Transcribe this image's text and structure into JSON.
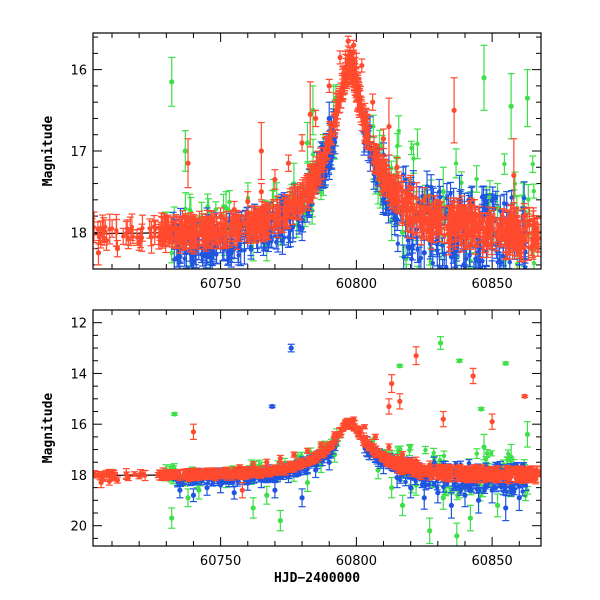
{
  "chart_data": [
    {
      "type": "scatter",
      "panel": "top",
      "title": "",
      "xlabel": "",
      "ylabel": "Magnitude",
      "xlim": [
        60703,
        60868
      ],
      "ylim": [
        18.45,
        15.55
      ],
      "y_inverted": true,
      "xticks": [
        60750,
        60800,
        60850
      ],
      "yticks": [
        16,
        17,
        18
      ],
      "xtick_labels": [
        "60750",
        "60800",
        "60850"
      ],
      "ytick_labels": [
        "16",
        "17",
        "18"
      ],
      "grid": false,
      "legend": "none",
      "model_curve": {
        "t0": 60797.5,
        "u0": 0.148,
        "tE": 22,
        "baseline": 18.02,
        "color": "#000000"
      },
      "series": [
        {
          "color": "#ff4a2e",
          "x": [
            60705,
            60708,
            60712,
            60716,
            60720,
            60726,
            60730,
            60735,
            60740,
            60745,
            60750,
            60755,
            60760,
            60765,
            60770,
            60775,
            60780,
            60785,
            60790,
            60794,
            60797,
            60799,
            60802,
            60806,
            60810,
            60815,
            60820,
            60825,
            60830,
            60835,
            60840,
            60845,
            60850,
            60855,
            60860,
            60865,
            60738,
            60765,
            60783,
            60800,
            60812,
            60836,
            60858
          ],
          "y": [
            18.25,
            18.1,
            18.2,
            18.08,
            18.12,
            17.95,
            18.0,
            17.95,
            17.88,
            17.85,
            17.8,
            17.72,
            17.62,
            17.5,
            17.35,
            17.15,
            16.9,
            16.6,
            16.2,
            15.85,
            15.65,
            15.7,
            15.95,
            16.4,
            16.85,
            17.2,
            17.45,
            17.6,
            17.75,
            17.85,
            17.92,
            17.98,
            18.0,
            18.05,
            18.05,
            18.08,
            17.15,
            17.0,
            16.55,
            16.1,
            16.7,
            16.5,
            17.3
          ],
          "err": [
            0.15,
            0.12,
            0.1,
            0.12,
            0.1,
            0.1,
            0.12,
            0.1,
            0.1,
            0.12,
            0.1,
            0.1,
            0.12,
            0.1,
            0.12,
            0.1,
            0.1,
            0.1,
            0.08,
            0.08,
            0.06,
            0.06,
            0.08,
            0.1,
            0.12,
            0.12,
            0.15,
            0.15,
            0.15,
            0.18,
            0.15,
            0.2,
            0.2,
            0.2,
            0.2,
            0.25,
            0.3,
            0.35,
            0.4,
            0.3,
            0.35,
            0.4,
            0.45
          ]
        },
        {
          "color": "#1f55e0",
          "x": [
            60735,
            60740,
            60745,
            60750,
            60755,
            60760,
            60765,
            60770,
            60775,
            60780,
            60785,
            60790,
            60805,
            60810,
            60815,
            60820,
            60825,
            60830,
            60835,
            60840,
            60845,
            60850,
            60855,
            60860,
            60745,
            60790,
            60812,
            60838,
            60862
          ],
          "y": [
            18.3,
            18.35,
            18.25,
            18.1,
            18.2,
            18.05,
            17.95,
            17.9,
            17.7,
            17.95,
            17.4,
            17.1,
            16.7,
            17.05,
            17.55,
            17.9,
            18.25,
            18.1,
            18.3,
            18.2,
            18.35,
            18.15,
            18.3,
            18.2,
            17.9,
            16.6,
            17.3,
            17.6,
            18.0
          ],
          "err": [
            0.15,
            0.12,
            0.15,
            0.15,
            0.12,
            0.15,
            0.12,
            0.15,
            0.15,
            0.15,
            0.12,
            0.12,
            0.12,
            0.15,
            0.15,
            0.18,
            0.2,
            0.2,
            0.2,
            0.2,
            0.22,
            0.2,
            0.2,
            0.2,
            0.2,
            0.2,
            0.25,
            0.3,
            0.3
          ]
        },
        {
          "color": "#3ee04a",
          "x": [
            60732,
            60737,
            60742,
            60752,
            60762,
            60767,
            60772,
            60777,
            60782,
            60787,
            60792,
            60808,
            60813,
            60817,
            60822,
            60827,
            60832,
            60837,
            60842,
            60847,
            60852,
            60857,
            60863,
            60746,
            60784
          ],
          "y": [
            16.15,
            17.0,
            18.0,
            17.7,
            18.1,
            18.15,
            17.95,
            17.4,
            16.9,
            17.2,
            16.9,
            17.4,
            17.85,
            18.0,
            17.8,
            18.1,
            17.5,
            18.1,
            17.8,
            16.1,
            17.7,
            16.45,
            16.35,
            18.3,
            16.5
          ],
          "err": [
            0.3,
            0.25,
            0.2,
            0.2,
            0.25,
            0.2,
            0.2,
            0.25,
            0.25,
            0.2,
            0.2,
            0.25,
            0.25,
            0.3,
            0.3,
            0.3,
            0.3,
            0.35,
            0.3,
            0.4,
            0.3,
            0.4,
            0.35,
            0.3,
            0.3
          ]
        }
      ]
    },
    {
      "type": "scatter",
      "panel": "bottom",
      "title": "",
      "xlabel": "HJD−2400000",
      "ylabel": "Magnitude",
      "xlim": [
        60703,
        60868
      ],
      "ylim": [
        20.8,
        11.5
      ],
      "y_inverted": true,
      "xticks": [
        60750,
        60800,
        60850
      ],
      "yticks": [
        12,
        14,
        16,
        18,
        20
      ],
      "xtick_labels": [
        "60750",
        "60800",
        "60850"
      ],
      "ytick_labels": [
        "12",
        "14",
        "16",
        "18",
        "20"
      ],
      "grid": false,
      "legend": "none",
      "model_curve": {
        "t0": 60797.5,
        "u0": 0.148,
        "tE": 22,
        "baseline": 18.02,
        "color": "#000000"
      },
      "series": [
        {
          "color": "#ff4a2e",
          "x": [
            60706,
            60709,
            60712,
            60716,
            60720,
            60727,
            60732,
            60737,
            60742,
            60747,
            60752,
            60757,
            60762,
            60767,
            60772,
            60777,
            60782,
            60787,
            60792,
            60796,
            60799,
            60803,
            60807,
            60812,
            60817,
            60822,
            60827,
            60832,
            60837,
            60842,
            60847,
            60852,
            60857,
            60862,
            60866,
            60740,
            60758,
            60812,
            60813,
            60816,
            60822,
            60832,
            60843,
            60850,
            60862
          ],
          "y": [
            18.3,
            18.25,
            18.2,
            18.1,
            18.05,
            18.0,
            17.95,
            17.9,
            17.95,
            17.85,
            17.8,
            17.7,
            17.6,
            17.5,
            17.35,
            17.2,
            17.05,
            16.8,
            16.4,
            15.95,
            15.8,
            16.1,
            16.5,
            16.9,
            17.2,
            17.45,
            17.6,
            17.75,
            17.85,
            17.9,
            17.95,
            18.0,
            18.05,
            18.05,
            18.1,
            16.3,
            18.6,
            15.3,
            14.4,
            15.1,
            13.3,
            15.8,
            14.1,
            15.9,
            14.9
          ],
          "err": [
            0.2,
            0.15,
            0.12,
            0.12,
            0.1,
            0.1,
            0.12,
            0.1,
            0.1,
            0.12,
            0.1,
            0.1,
            0.12,
            0.12,
            0.12,
            0.1,
            0.1,
            0.1,
            0.1,
            0.08,
            0.08,
            0.08,
            0.1,
            0.12,
            0.12,
            0.15,
            0.15,
            0.15,
            0.18,
            0.15,
            0.2,
            0.2,
            0.2,
            0.2,
            0.25,
            0.3,
            0.3,
            0.3,
            0.35,
            0.3,
            0.35,
            0.3,
            0.3,
            0.3,
            0.05
          ]
        },
        {
          "color": "#1f55e0",
          "x": [
            60735,
            60740,
            60745,
            60750,
            60755,
            60760,
            60765,
            60770,
            60775,
            60780,
            60785,
            60790,
            60805,
            60810,
            60815,
            60820,
            60825,
            60830,
            60835,
            60840,
            60845,
            60850,
            60855,
            60860,
            60776,
            60769
          ],
          "y": [
            18.6,
            18.8,
            18.5,
            18.4,
            18.7,
            18.3,
            18.2,
            18.6,
            18.0,
            18.9,
            17.8,
            17.5,
            17.1,
            17.6,
            18.1,
            18.5,
            18.9,
            18.7,
            19.2,
            18.8,
            19.0,
            18.6,
            19.3,
            18.9,
            13.0,
            15.3
          ],
          "err": [
            0.3,
            0.25,
            0.3,
            0.3,
            0.25,
            0.3,
            0.3,
            0.3,
            0.3,
            0.35,
            0.3,
            0.3,
            0.3,
            0.35,
            0.4,
            0.4,
            0.45,
            0.4,
            0.5,
            0.45,
            0.5,
            0.5,
            0.5,
            0.5,
            0.15,
            0.05
          ]
        },
        {
          "color": "#3ee04a",
          "x": [
            60732,
            60738,
            60742,
            60752,
            60762,
            60767,
            60772,
            60777,
            60782,
            60787,
            60792,
            60808,
            60813,
            60817,
            60822,
            60827,
            60832,
            60837,
            60842,
            60847,
            60852,
            60857,
            60863,
            60733,
            60831,
            60816,
            60838,
            60846,
            60855
          ],
          "y": [
            19.7,
            18.9,
            18.6,
            18.2,
            19.3,
            18.8,
            19.8,
            17.9,
            18.3,
            17.6,
            17.2,
            17.8,
            18.5,
            19.2,
            18.4,
            20.2,
            18.9,
            20.4,
            19.7,
            16.9,
            19.2,
            17.3,
            16.4,
            15.6,
            12.8,
            13.7,
            13.5,
            15.4,
            13.6
          ],
          "err": [
            0.4,
            0.35,
            0.35,
            0.3,
            0.4,
            0.35,
            0.4,
            0.35,
            0.35,
            0.3,
            0.3,
            0.35,
            0.4,
            0.4,
            0.4,
            0.5,
            0.45,
            0.5,
            0.5,
            0.5,
            0.45,
            0.5,
            0.5,
            0.05,
            0.25,
            0.05,
            0.05,
            0.05,
            0.05
          ]
        }
      ]
    }
  ]
}
